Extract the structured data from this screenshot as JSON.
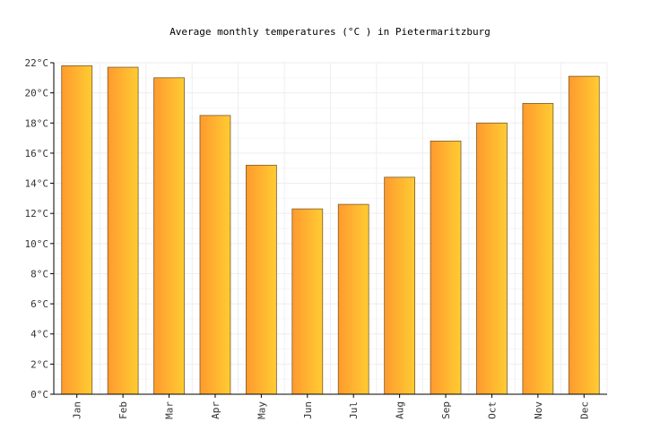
{
  "chart_data": {
    "type": "bar",
    "title": "Average monthly temperatures (°C ) in Pietermaritzburg",
    "xlabel": "",
    "ylabel": "",
    "categories": [
      "Jan",
      "Feb",
      "Mar",
      "Apr",
      "May",
      "Jun",
      "Jul",
      "Aug",
      "Sep",
      "Oct",
      "Nov",
      "Dec"
    ],
    "values": [
      21.8,
      21.7,
      21.0,
      18.5,
      15.2,
      12.3,
      12.6,
      14.4,
      16.8,
      18.0,
      19.3,
      21.1
    ],
    "ylim": [
      0,
      22
    ],
    "yticks": [
      0,
      2,
      4,
      6,
      8,
      10,
      12,
      14,
      16,
      18,
      20,
      22
    ],
    "ytick_labels": [
      "0°C",
      "2°C",
      "4°C",
      "6°C",
      "8°C",
      "10°C",
      "12°C",
      "14°C",
      "16°C",
      "18°C",
      "20°C",
      "22°C"
    ],
    "grid": true,
    "legend": "none",
    "colors": {
      "bar_left": "#ff9a2e",
      "bar_right": "#ffcc33",
      "bar_stroke": "#7a5a2a",
      "grid": "#eeeeee",
      "axis": "#000000"
    }
  }
}
